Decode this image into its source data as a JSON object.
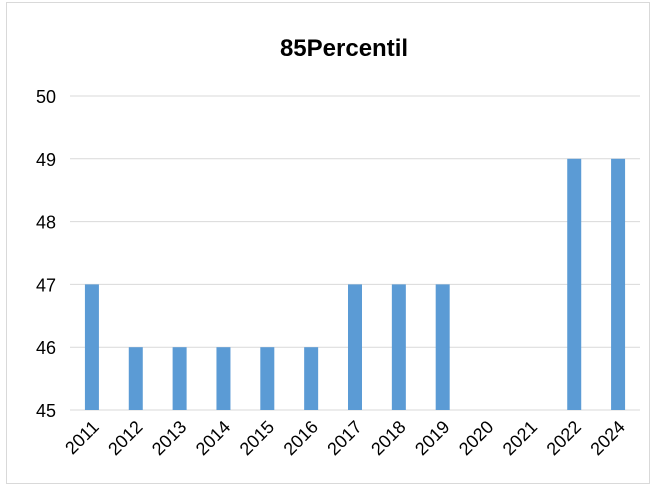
{
  "chart_data": {
    "type": "bar",
    "title": "85Percentil",
    "xlabel": "",
    "ylabel": "",
    "categories": [
      "2011",
      "2012",
      "2013",
      "2014",
      "2015",
      "2016",
      "2017",
      "2018",
      "2019",
      "2020",
      "2021",
      "2022",
      "2024"
    ],
    "values": [
      47,
      46,
      46,
      46,
      46,
      46,
      47,
      47,
      47,
      null,
      null,
      49,
      49
    ],
    "ylim": [
      45,
      50
    ],
    "yticks": [
      "45",
      "46",
      "47",
      "48",
      "49",
      "50"
    ],
    "grid": true,
    "legend": "none",
    "bar_color": "#5b9bd5",
    "grid_color": "#d9d9d9"
  }
}
